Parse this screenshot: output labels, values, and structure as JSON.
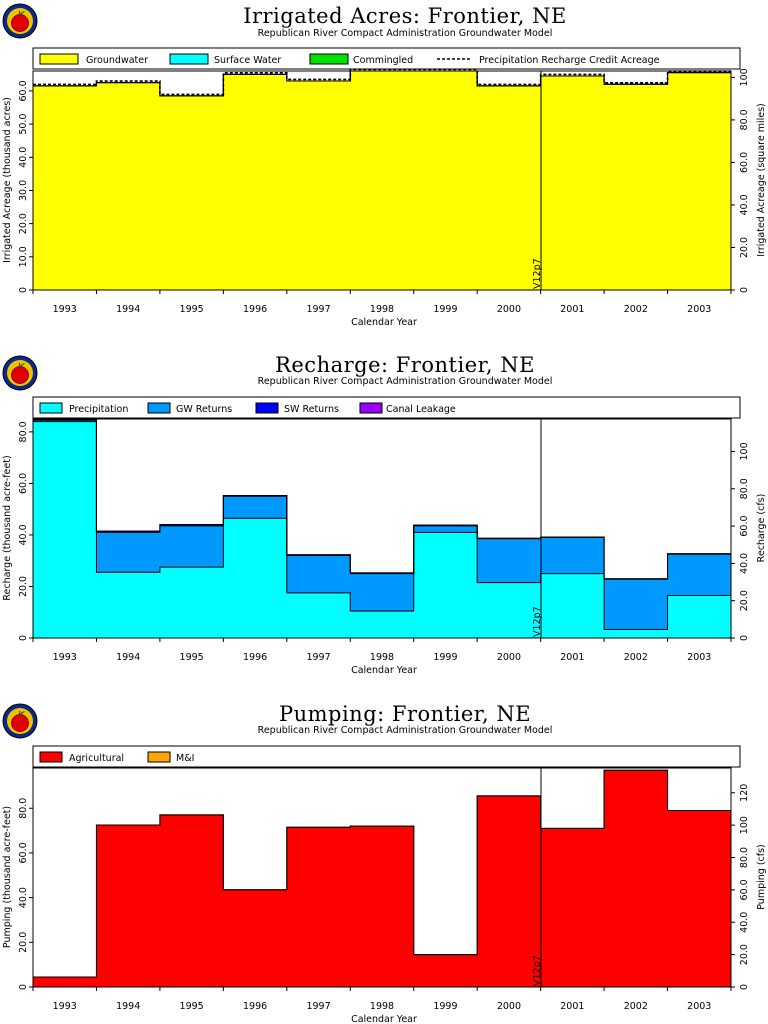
{
  "chart_data": [
    {
      "type": "area",
      "title": "Irrigated Acres: Frontier, NE",
      "subtitle": "Republican River Compact Administration Groundwater Model",
      "xlabel": "Calendar Year",
      "ylabel_left": "Irrigated Acreage (thousand acres)",
      "ylabel_right": "Irrigated Acreage (square miles)",
      "categories": [
        "1993",
        "1994",
        "1995",
        "1996",
        "1997",
        "1998",
        "1999",
        "2000",
        "2001",
        "2002",
        "2003"
      ],
      "ylim": [
        0,
        66
      ],
      "yticks": [
        "0",
        "10.0",
        "20.0",
        "30.0",
        "40.0",
        "50.0",
        "60.0"
      ],
      "ylim_right": [
        0,
        103
      ],
      "yticks_right": [
        "0",
        "20.0",
        "40.0",
        "60.0",
        "80.0",
        "100"
      ],
      "series": [
        {
          "name": "Groundwater",
          "color": "#ffff00",
          "values": [
            61.5,
            62.5,
            58.5,
            65.0,
            63.0,
            67.0,
            67.0,
            61.5,
            64.5,
            62.0,
            65.5
          ]
        },
        {
          "name": "Surface Water",
          "color": "#00ffff",
          "values": [
            0,
            0,
            0,
            0,
            0,
            0,
            0,
            0,
            0,
            0,
            0
          ]
        },
        {
          "name": "Commingled",
          "color": "#00e000",
          "values": [
            0,
            0,
            0,
            0,
            0,
            0,
            0,
            0,
            0,
            0,
            0
          ]
        },
        {
          "name": "Precipitation Recharge Credit Acreage",
          "color": "#000000",
          "style": "dashed",
          "values": [
            61.5,
            62.5,
            58.5,
            65.0,
            63.0,
            67.0,
            67.0,
            61.5,
            64.5,
            62.0,
            65.5
          ]
        }
      ],
      "marker": {
        "at": "2000/2001",
        "label": "V12p7"
      }
    },
    {
      "type": "area",
      "title": "Recharge: Frontier, NE",
      "subtitle": "Republican River Compact Administration Groundwater Model",
      "xlabel": "Calendar Year",
      "ylabel_left": "Recharge (thousand acre-feet)",
      "ylabel_right": "Recharge (cfs)",
      "categories": [
        "1993",
        "1994",
        "1995",
        "1996",
        "1997",
        "1998",
        "1999",
        "2000",
        "2001",
        "2002",
        "2003"
      ],
      "ylim": [
        0,
        85
      ],
      "yticks": [
        "0",
        "20.0",
        "40.0",
        "60.0",
        "80.0"
      ],
      "ylim_right": [
        0,
        117.4
      ],
      "yticks_right": [
        "0",
        "20.0",
        "40.0",
        "60.0",
        "80.0",
        "100"
      ],
      "series": [
        {
          "name": "Precipitation",
          "color": "#00ffff",
          "values": [
            84,
            25.5,
            27.5,
            46.5,
            17.5,
            10.5,
            41,
            21.5,
            25,
            3.3,
            16.5
          ]
        },
        {
          "name": "GW Returns",
          "color": "#0099ff",
          "values": [
            0.5,
            15.5,
            16,
            8.5,
            14.5,
            14.5,
            2.5,
            17,
            14,
            19.5,
            16
          ]
        },
        {
          "name": "SW Returns",
          "color": "#0000ff",
          "values": [
            0.3,
            0.5,
            0.5,
            0.3,
            0.3,
            0.3,
            0.3,
            0.2,
            0.2,
            0.2,
            0.2
          ]
        },
        {
          "name": "Canal Leakage",
          "color": "#9900ff",
          "values": [
            0,
            0,
            0,
            0,
            0,
            0,
            0,
            0,
            0,
            0,
            0
          ]
        }
      ],
      "marker": {
        "at": "2000/2001",
        "label": "V12p7"
      }
    },
    {
      "type": "area",
      "title": "Pumping: Frontier, NE",
      "subtitle": "Republican River Compact Administration Groundwater Model",
      "xlabel": "Calendar Year",
      "ylabel_left": "Pumping (thousand acre-feet)",
      "ylabel_right": "Pumping (cfs)",
      "categories": [
        "1993",
        "1994",
        "1995",
        "1996",
        "1997",
        "1998",
        "1999",
        "2000",
        "2001",
        "2002",
        "2003"
      ],
      "ylim": [
        0,
        98
      ],
      "yticks": [
        "0",
        "20.0",
        "40.0",
        "60.0",
        "80.0"
      ],
      "ylim_right": [
        0,
        135.3
      ],
      "yticks_right": [
        "0",
        "20.0",
        "40.0",
        "60.0",
        "80.0",
        "100",
        "120"
      ],
      "series": [
        {
          "name": "Agricultural",
          "color": "#ff0000",
          "values": [
            4.5,
            72.5,
            77,
            43.5,
            71.5,
            72,
            14.5,
            85.5,
            71,
            97,
            79
          ]
        },
        {
          "name": "M&I",
          "color": "#ffa500",
          "values": [
            0,
            0,
            0,
            0,
            0,
            0,
            0,
            0,
            0,
            0,
            0
          ]
        }
      ],
      "marker": {
        "at": "2000/2001",
        "label": "V12p7"
      }
    }
  ]
}
